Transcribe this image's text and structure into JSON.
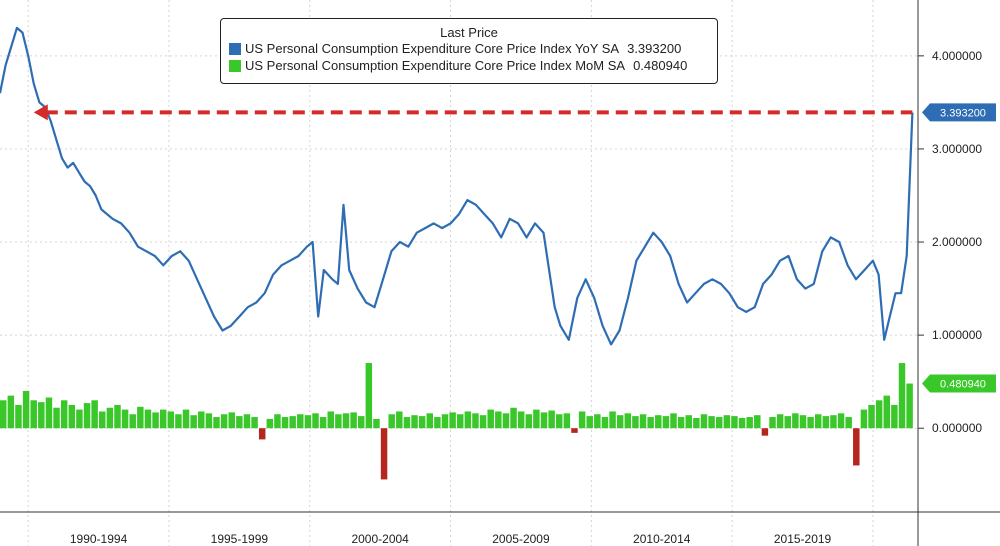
{
  "chart_data": {
    "type": "line",
    "title": "Last Price",
    "series": [
      {
        "name": "US Personal Consumption Expenditure Core Price Index YoY SA",
        "last_value": "3.393200",
        "color": "#2e6db3",
        "points": [
          [
            1989.0,
            3.6
          ],
          [
            1989.2,
            3.9
          ],
          [
            1989.4,
            4.1
          ],
          [
            1989.6,
            4.3
          ],
          [
            1989.8,
            4.25
          ],
          [
            1990.0,
            4.0
          ],
          [
            1990.2,
            3.7
          ],
          [
            1990.4,
            3.5
          ],
          [
            1990.6,
            3.45
          ],
          [
            1990.8,
            3.3
          ],
          [
            1991.0,
            3.1
          ],
          [
            1991.2,
            2.9
          ],
          [
            1991.4,
            2.8
          ],
          [
            1991.6,
            2.85
          ],
          [
            1991.8,
            2.75
          ],
          [
            1992.0,
            2.65
          ],
          [
            1992.2,
            2.6
          ],
          [
            1992.4,
            2.5
          ],
          [
            1992.6,
            2.35
          ],
          [
            1992.8,
            2.3
          ],
          [
            1993.0,
            2.25
          ],
          [
            1993.3,
            2.2
          ],
          [
            1993.6,
            2.1
          ],
          [
            1993.9,
            1.95
          ],
          [
            1994.2,
            1.9
          ],
          [
            1994.5,
            1.85
          ],
          [
            1994.8,
            1.75
          ],
          [
            1995.1,
            1.85
          ],
          [
            1995.4,
            1.9
          ],
          [
            1995.7,
            1.8
          ],
          [
            1996.0,
            1.6
          ],
          [
            1996.3,
            1.4
          ],
          [
            1996.6,
            1.2
          ],
          [
            1996.9,
            1.05
          ],
          [
            1997.2,
            1.1
          ],
          [
            1997.5,
            1.2
          ],
          [
            1997.8,
            1.3
          ],
          [
            1998.1,
            1.35
          ],
          [
            1998.4,
            1.45
          ],
          [
            1998.7,
            1.65
          ],
          [
            1999.0,
            1.75
          ],
          [
            1999.3,
            1.8
          ],
          [
            1999.6,
            1.85
          ],
          [
            1999.9,
            1.95
          ],
          [
            2000.1,
            2.0
          ],
          [
            2000.3,
            1.2
          ],
          [
            2000.5,
            1.7
          ],
          [
            2000.8,
            1.6
          ],
          [
            2001.0,
            1.55
          ],
          [
            2001.2,
            2.4
          ],
          [
            2001.4,
            1.7
          ],
          [
            2001.7,
            1.5
          ],
          [
            2002.0,
            1.35
          ],
          [
            2002.3,
            1.3
          ],
          [
            2002.6,
            1.6
          ],
          [
            2002.9,
            1.9
          ],
          [
            2003.2,
            2.0
          ],
          [
            2003.5,
            1.95
          ],
          [
            2003.8,
            2.1
          ],
          [
            2004.1,
            2.15
          ],
          [
            2004.4,
            2.2
          ],
          [
            2004.7,
            2.15
          ],
          [
            2005.0,
            2.2
          ],
          [
            2005.3,
            2.3
          ],
          [
            2005.6,
            2.45
          ],
          [
            2005.9,
            2.4
          ],
          [
            2006.2,
            2.3
          ],
          [
            2006.5,
            2.2
          ],
          [
            2006.8,
            2.05
          ],
          [
            2007.1,
            2.25
          ],
          [
            2007.4,
            2.2
          ],
          [
            2007.7,
            2.05
          ],
          [
            2008.0,
            2.2
          ],
          [
            2008.3,
            2.1
          ],
          [
            2008.5,
            1.7
          ],
          [
            2008.7,
            1.3
          ],
          [
            2008.9,
            1.1
          ],
          [
            2009.2,
            0.95
          ],
          [
            2009.5,
            1.4
          ],
          [
            2009.8,
            1.6
          ],
          [
            2010.1,
            1.4
          ],
          [
            2010.4,
            1.1
          ],
          [
            2010.7,
            0.9
          ],
          [
            2011.0,
            1.05
          ],
          [
            2011.3,
            1.4
          ],
          [
            2011.6,
            1.8
          ],
          [
            2011.9,
            1.95
          ],
          [
            2012.2,
            2.1
          ],
          [
            2012.5,
            2.0
          ],
          [
            2012.8,
            1.85
          ],
          [
            2013.1,
            1.55
          ],
          [
            2013.4,
            1.35
          ],
          [
            2013.7,
            1.45
          ],
          [
            2014.0,
            1.55
          ],
          [
            2014.3,
            1.6
          ],
          [
            2014.6,
            1.55
          ],
          [
            2014.9,
            1.45
          ],
          [
            2015.2,
            1.3
          ],
          [
            2015.5,
            1.25
          ],
          [
            2015.8,
            1.3
          ],
          [
            2016.1,
            1.55
          ],
          [
            2016.4,
            1.65
          ],
          [
            2016.7,
            1.8
          ],
          [
            2017.0,
            1.85
          ],
          [
            2017.3,
            1.6
          ],
          [
            2017.6,
            1.5
          ],
          [
            2017.9,
            1.55
          ],
          [
            2018.2,
            1.9
          ],
          [
            2018.5,
            2.05
          ],
          [
            2018.8,
            2.0
          ],
          [
            2019.1,
            1.75
          ],
          [
            2019.4,
            1.6
          ],
          [
            2019.7,
            1.7
          ],
          [
            2020.0,
            1.8
          ],
          [
            2020.2,
            1.65
          ],
          [
            2020.4,
            0.95
          ],
          [
            2020.6,
            1.2
          ],
          [
            2020.8,
            1.45
          ],
          [
            2021.0,
            1.45
          ],
          [
            2021.2,
            1.85
          ],
          [
            2021.4,
            3.39
          ]
        ]
      },
      {
        "name": "US Personal Consumption Expenditure Core Price Index MoM SA",
        "last_value": "0.480940",
        "color": "#39c72a",
        "neg_color": "#b5261e",
        "bars": [
          0.3,
          0.35,
          0.25,
          0.4,
          0.3,
          0.28,
          0.33,
          0.22,
          0.3,
          0.25,
          0.2,
          0.27,
          0.3,
          0.18,
          0.22,
          0.25,
          0.2,
          0.15,
          0.23,
          0.2,
          0.17,
          0.2,
          0.18,
          0.15,
          0.2,
          0.14,
          0.18,
          0.16,
          0.12,
          0.15,
          0.17,
          0.13,
          0.15,
          0.12,
          -0.12,
          0.1,
          0.15,
          0.12,
          0.13,
          0.15,
          0.14,
          0.16,
          0.12,
          0.18,
          0.15,
          0.16,
          0.17,
          0.13,
          0.7,
          0.1,
          -0.55,
          0.15,
          0.18,
          0.12,
          0.14,
          0.13,
          0.16,
          0.12,
          0.15,
          0.17,
          0.15,
          0.18,
          0.16,
          0.14,
          0.2,
          0.18,
          0.16,
          0.22,
          0.18,
          0.15,
          0.2,
          0.17,
          0.19,
          0.15,
          0.16,
          -0.05,
          0.18,
          0.13,
          0.15,
          0.12,
          0.18,
          0.14,
          0.16,
          0.13,
          0.15,
          0.12,
          0.14,
          0.13,
          0.16,
          0.12,
          0.14,
          0.11,
          0.15,
          0.13,
          0.12,
          0.14,
          0.13,
          0.11,
          0.12,
          0.14,
          -0.08,
          0.12,
          0.15,
          0.13,
          0.16,
          0.14,
          0.12,
          0.15,
          0.13,
          0.14,
          0.16,
          0.12,
          -0.4,
          0.2,
          0.25,
          0.3,
          0.35,
          0.25,
          0.7,
          0.48
        ]
      }
    ],
    "x_period_labels": [
      "1990-1994",
      "1995-1999",
      "2000-2004",
      "2005-2009",
      "2010-2014",
      "2015-2019"
    ],
    "y_tick_labels": [
      "4.000000",
      "3.000000",
      "2.000000",
      "1.000000",
      "0.000000"
    ],
    "xlim": [
      1989.0,
      2021.6
    ],
    "ylim": [
      -0.9,
      4.6
    ],
    "reference_line": {
      "value": 3.3932,
      "from_x": 1990.2,
      "to_x": 2021.4,
      "color": "#d42a2a",
      "style": "dashed"
    },
    "last_price_label": "3.393200",
    "mom_last_label": "0.480940",
    "legend_title": "Last Price"
  }
}
